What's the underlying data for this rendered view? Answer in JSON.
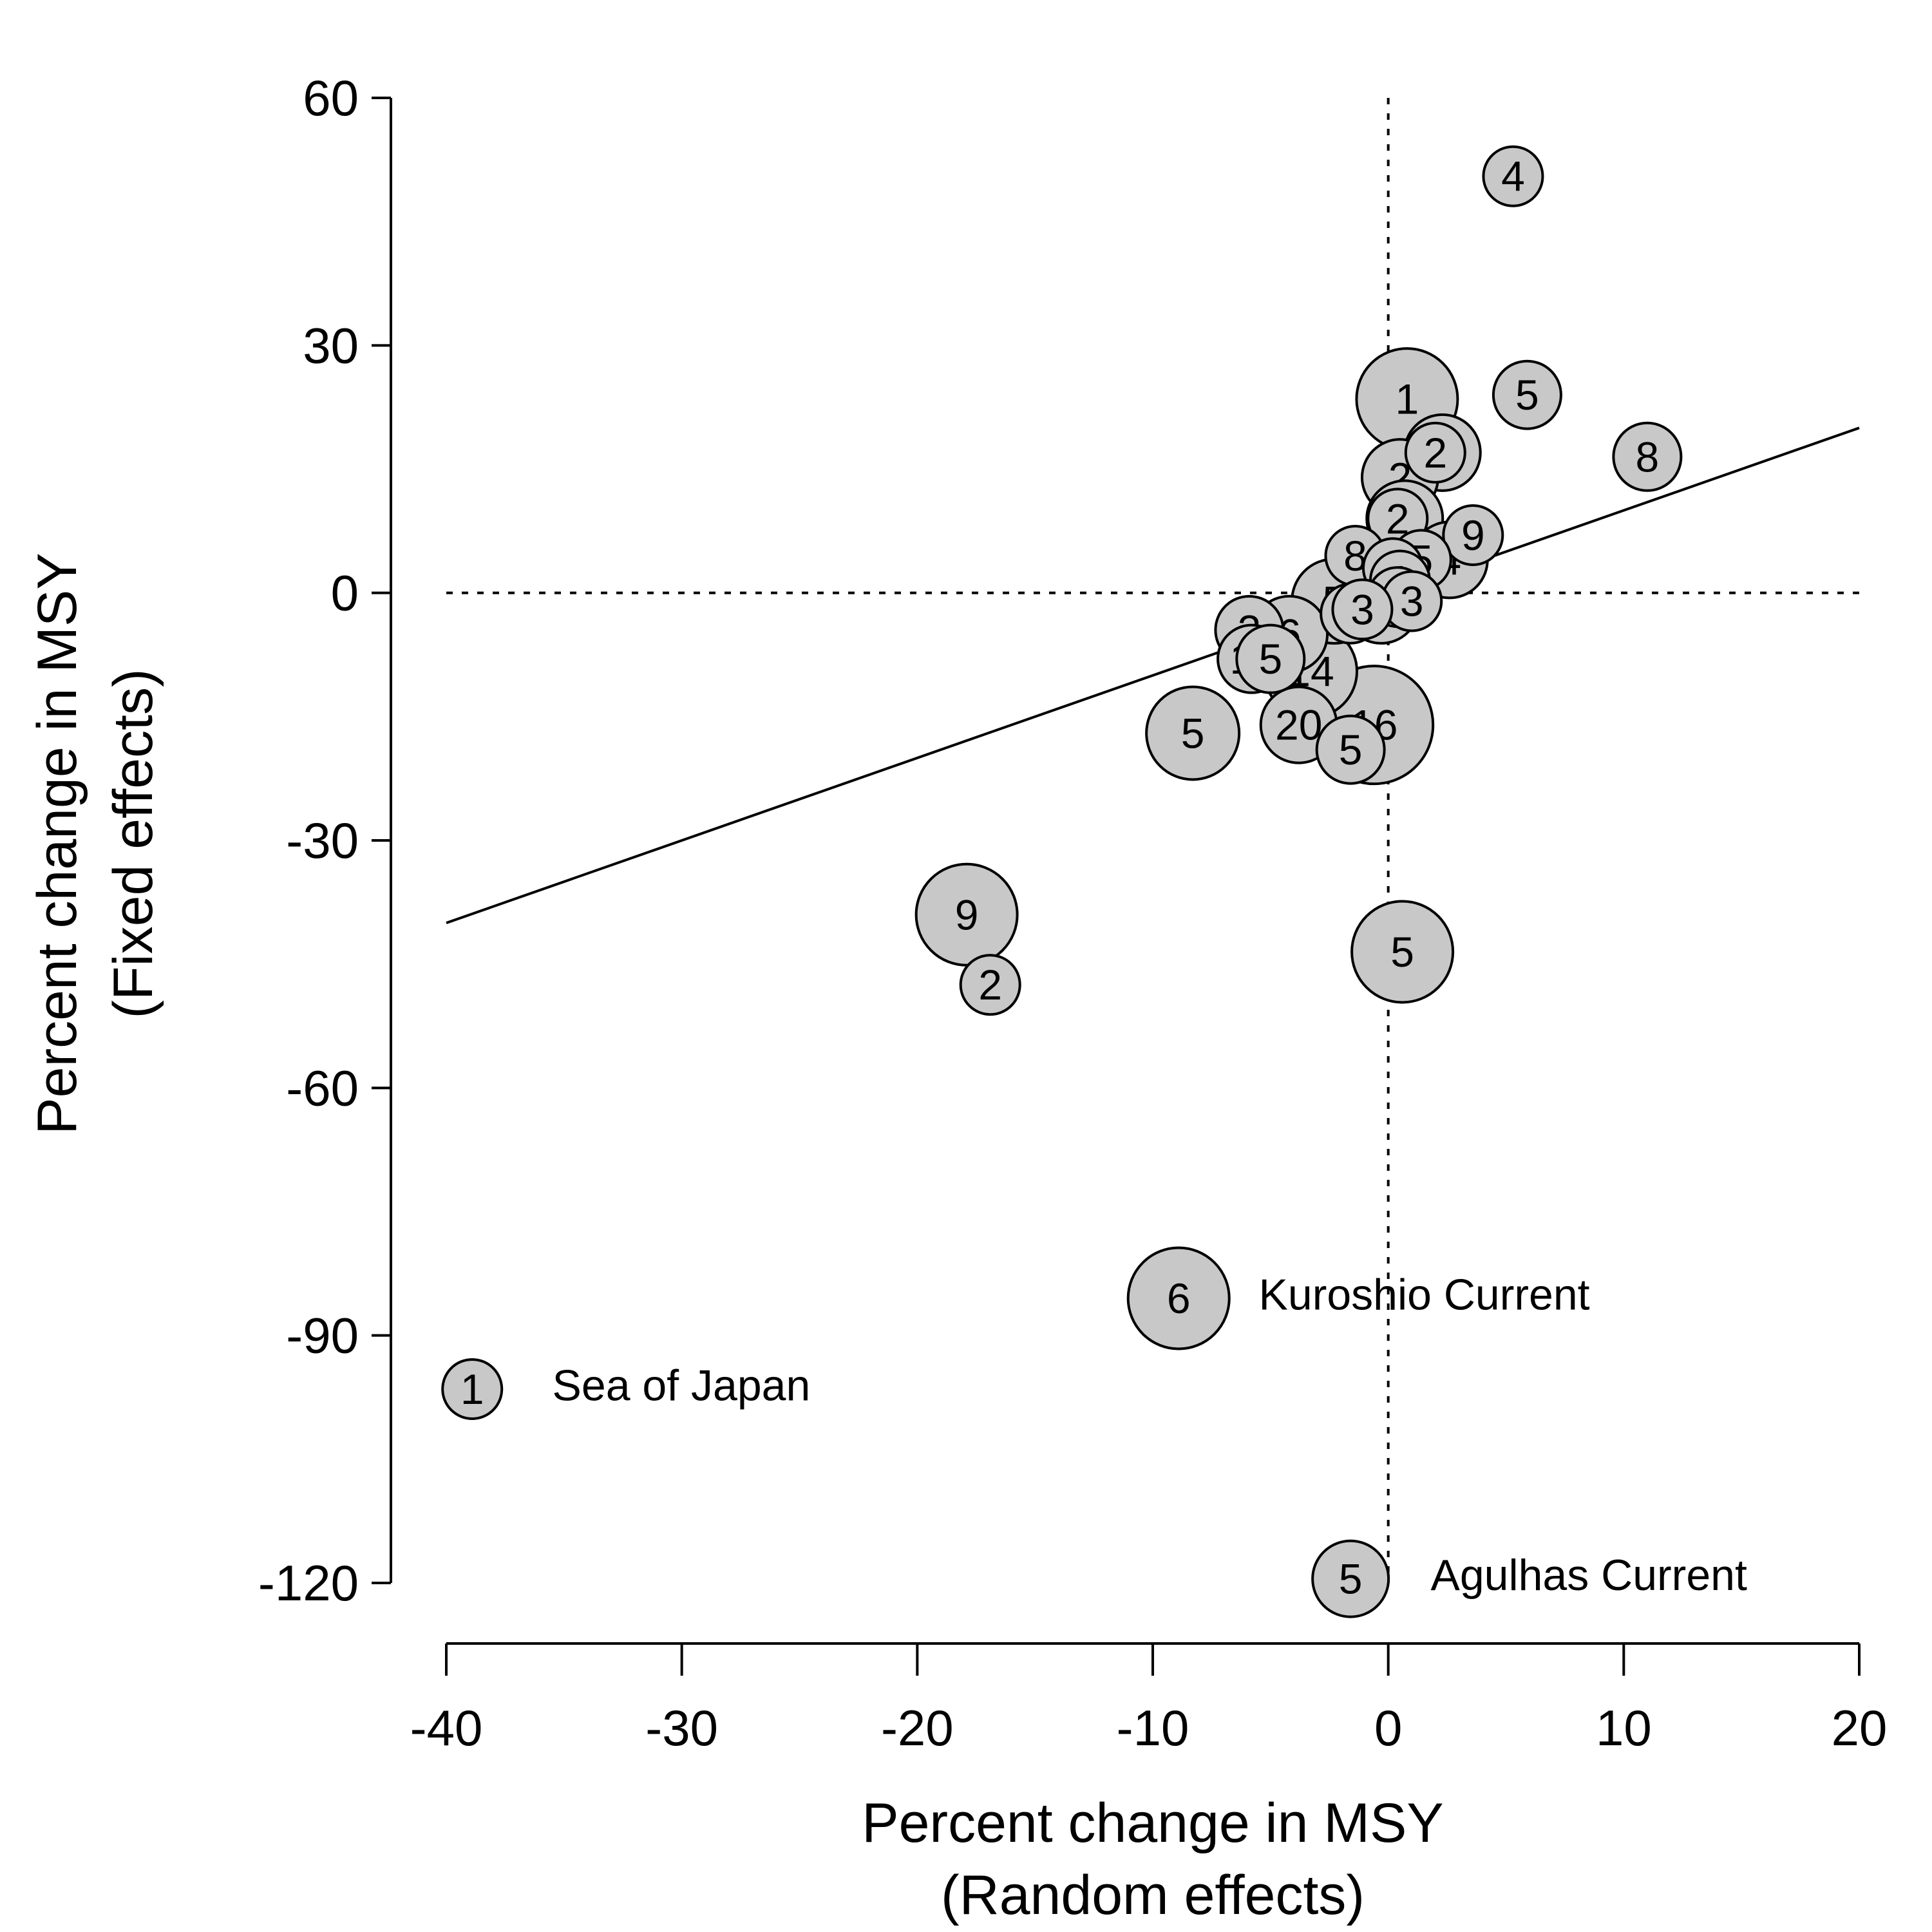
{
  "chart_data": {
    "type": "scatter",
    "subtype": "bubble",
    "xlabel": [
      "Percent change in MSY",
      "(Random effects)"
    ],
    "ylabel": [
      "Percent change in MSY",
      "(Fixed effects)"
    ],
    "xlim": [
      -40,
      20
    ],
    "ylim": [
      -120,
      60
    ],
    "xticks": [
      -40,
      -30,
      -20,
      -10,
      0,
      10,
      20
    ],
    "yticks": [
      60,
      30,
      0,
      -30,
      -60,
      -90,
      -120
    ],
    "xtick_labels": [
      "-40",
      "-30",
      "-20",
      "-10",
      "0",
      "10",
      "20"
    ],
    "ytick_labels": [
      "60",
      "30",
      "0",
      "-30",
      "-60",
      "-90",
      "-120"
    ],
    "grid": false,
    "reference_lines": {
      "x": 0,
      "y": 0,
      "style": "dotted"
    },
    "fit_line": {
      "x": [
        -40,
        20
      ],
      "y": [
        -40,
        20
      ]
    },
    "point_fill": "#c8c8c8",
    "points": [
      {
        "x": 5.3,
        "y": 50.5,
        "label": "4",
        "size": 4
      },
      {
        "x": 0.8,
        "y": 23.5,
        "label": "1",
        "size": 9
      },
      {
        "x": 5.9,
        "y": 24,
        "label": "5",
        "size": 5
      },
      {
        "x": 11,
        "y": 16.5,
        "label": "8",
        "size": 5
      },
      {
        "x": 2.3,
        "y": 17,
        "label": "1",
        "size": 6
      },
      {
        "x": 2.0,
        "y": 17,
        "label": "2",
        "size": 4
      },
      {
        "x": 0.5,
        "y": 14,
        "label": "2",
        "size": 6
      },
      {
        "x": 0.7,
        "y": 9,
        "label": "3",
        "size": 6
      },
      {
        "x": 0.4,
        "y": 9,
        "label": "2",
        "size": 4
      },
      {
        "x": 3.6,
        "y": 7,
        "label": "9",
        "size": 4
      },
      {
        "x": 2.6,
        "y": 4,
        "label": "4",
        "size": 6
      },
      {
        "x": 1.4,
        "y": 4,
        "label": "5",
        "size": 4
      },
      {
        "x": -1.4,
        "y": 4.5,
        "label": "8",
        "size": 4
      },
      {
        "x": 0.2,
        "y": 3,
        "label": "1",
        "size": 4
      },
      {
        "x": 0.5,
        "y": 1.5,
        "label": "1",
        "size": 4
      },
      {
        "x": 0.4,
        "y": -0.5,
        "label": "2",
        "size": 4
      },
      {
        "x": 1.0,
        "y": -1,
        "label": "3",
        "size": 4
      },
      {
        "x": -2.3,
        "y": -1,
        "label": "5",
        "size": 7
      },
      {
        "x": -1.6,
        "y": -2.5,
        "label": "9",
        "size": 4
      },
      {
        "x": -1.1,
        "y": -2,
        "label": "3",
        "size": 4
      },
      {
        "x": -0.3,
        "y": -1.5,
        "label": "1",
        "size": 6
      },
      {
        "x": -5.9,
        "y": -4.5,
        "label": "3",
        "size": 5
      },
      {
        "x": -4.2,
        "y": -5,
        "label": "6",
        "size": 6
      },
      {
        "x": -5.8,
        "y": -8,
        "label": "11",
        "size": 5
      },
      {
        "x": -5.0,
        "y": -8,
        "label": "5",
        "size": 5
      },
      {
        "x": -3.3,
        "y": -9.5,
        "label": "14",
        "size": 8
      },
      {
        "x": -8.3,
        "y": -17,
        "label": "5",
        "size": 8
      },
      {
        "x": -3.8,
        "y": -16,
        "label": "20",
        "size": 6
      },
      {
        "x": -0.6,
        "y": -16,
        "label": "16",
        "size": 11
      },
      {
        "x": -1.6,
        "y": -19,
        "label": "5",
        "size": 5
      },
      {
        "x": -17.9,
        "y": -39,
        "label": "9",
        "size": 9
      },
      {
        "x": -16.9,
        "y": -47.5,
        "label": "2",
        "size": 4
      },
      {
        "x": 0.6,
        "y": -43.5,
        "label": "5",
        "size": 9
      },
      {
        "x": -8.9,
        "y": -85.5,
        "label": "6",
        "size": 9
      },
      {
        "x": -38.9,
        "y": -96.5,
        "label": "1",
        "size": 4
      },
      {
        "x": -1.6,
        "y": -119.5,
        "label": "5",
        "size": 6
      }
    ],
    "annotations": [
      {
        "text": "Kuroshio Current",
        "x": -5.5,
        "y": -85
      },
      {
        "text": "Sea of Japan",
        "x": -35.5,
        "y": -96
      },
      {
        "text": "Agulhas Current",
        "x": 1.8,
        "y": -119
      }
    ]
  }
}
